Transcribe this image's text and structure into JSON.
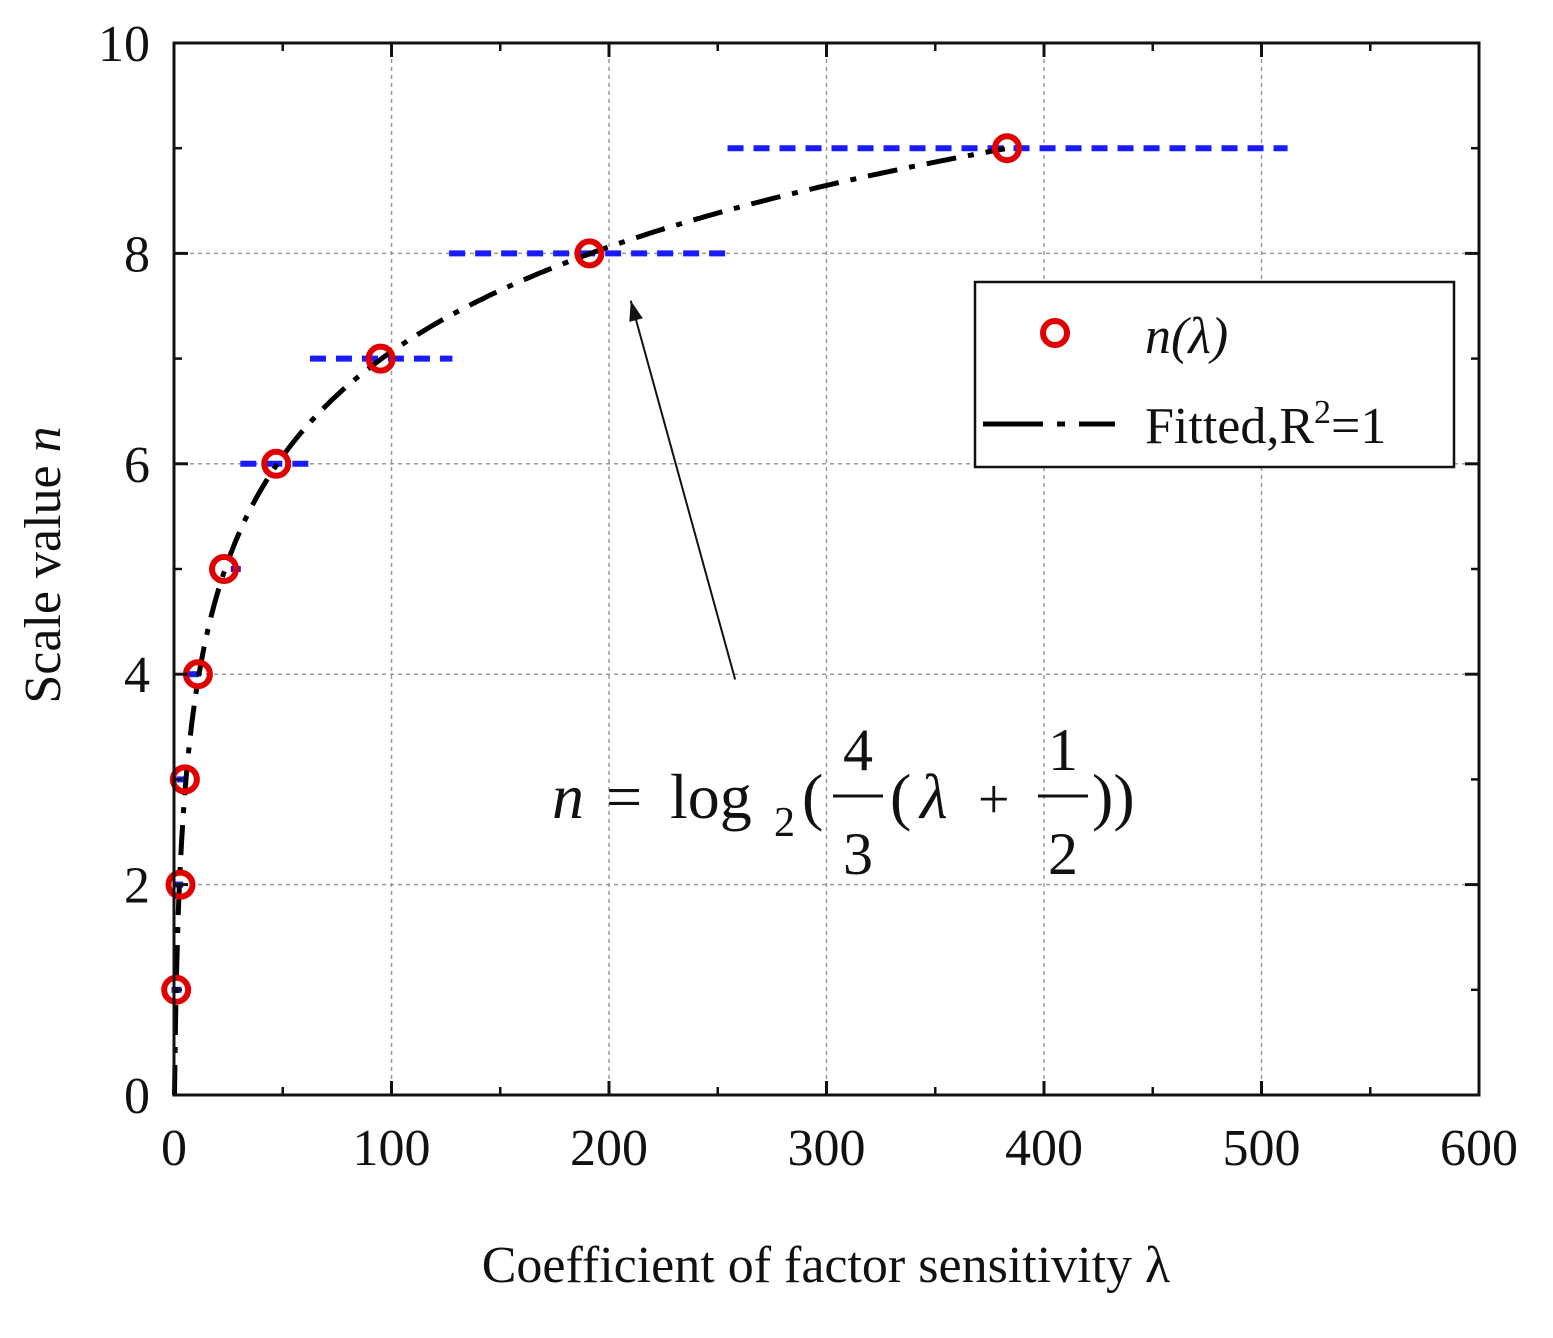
{
  "chart_data": {
    "type": "scatter",
    "title": "",
    "xlabel": "Coefficient of factor sensitivity λ",
    "ylabel_text": "Scale value ",
    "ylabel_var": "n",
    "xlim": [
      0,
      600
    ],
    "ylim": [
      0,
      10
    ],
    "xticks": [
      0,
      100,
      200,
      300,
      400,
      500,
      600
    ],
    "yticks": [
      0,
      2,
      4,
      6,
      8,
      10
    ],
    "xtick_labels": [
      "0",
      "100",
      "200",
      "300",
      "400",
      "500",
      "600"
    ],
    "ytick_labels": [
      "0",
      "2",
      "4",
      "6",
      "8",
      "10"
    ],
    "grid": true,
    "series": [
      {
        "name": "n(λ)",
        "kind": "markers",
        "color": "#e00000",
        "x": [
          1,
          3,
          5,
          11,
          23,
          47,
          95,
          191,
          383
        ],
        "y": [
          1,
          2,
          3,
          4,
          5,
          6,
          7,
          8,
          9
        ]
      },
      {
        "name": "Fitted,R²=1",
        "kind": "fit-line",
        "color": "#000000",
        "formula": "n = log2(4/3 (λ + 1/2))"
      },
      {
        "name": "scale intervals",
        "kind": "intervals",
        "color": "#1a1aff",
        "segments": [
          {
            "y": 1,
            "x0": 0.25,
            "x1": 1.0
          },
          {
            "y": 2,
            "x0": 1.0,
            "x1": 2.5
          },
          {
            "y": 3,
            "x0": 2.5,
            "x1": 5.5
          },
          {
            "y": 4,
            "x0": 5.5,
            "x1": 11.5
          },
          {
            "y": 5,
            "x0": 27.5,
            "x1": 32
          },
          {
            "y": 6,
            "x0": 30.5,
            "x1": 64
          },
          {
            "y": 7,
            "x0": 62.5,
            "x1": 128
          },
          {
            "y": 8,
            "x0": 126.5,
            "x1": 256
          },
          {
            "y": 9,
            "x0": 254.5,
            "x1": 512
          }
        ]
      }
    ],
    "legend": {
      "position": "top-right",
      "entries": [
        {
          "label": "n(λ)",
          "marker": "circle"
        },
        {
          "label_main": "Fitted,R",
          "label_sup": "2",
          "label_tail": "=1",
          "marker": "dash-dot"
        }
      ]
    },
    "annotation": {
      "points_to": {
        "x": 210,
        "y": 7.55
      },
      "from": {
        "x": 258,
        "y": 3.95
      },
      "formula": {
        "lhs": "n",
        "eq": "=",
        "log": "log",
        "base": "2",
        "open1": "(",
        "frac1_num": "4",
        "frac1_den": "3",
        "open2": "(",
        "var": "λ",
        "plus": "+",
        "frac2_num": "1",
        "frac2_den": "2",
        "close": "))"
      }
    }
  }
}
